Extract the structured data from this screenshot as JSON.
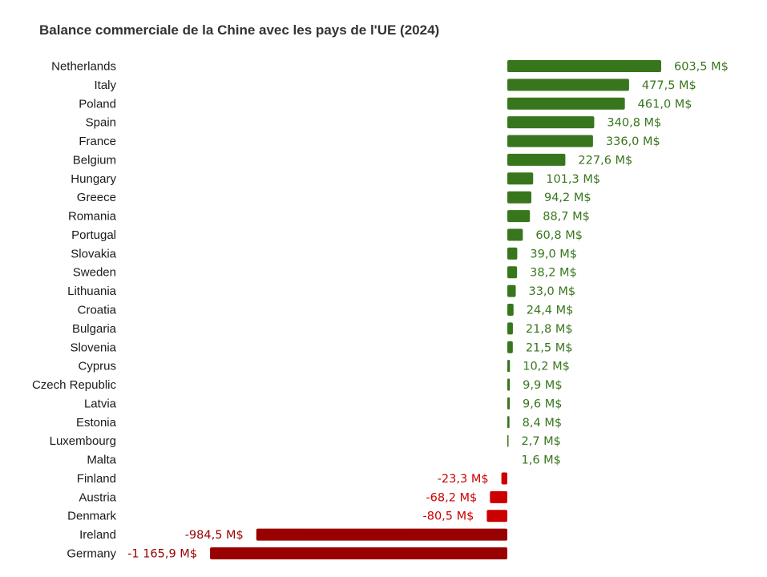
{
  "chart_data": {
    "type": "bar",
    "orientation": "horizontal",
    "title": "Balance commerciale de la Chine avec les pays de l'UE (2024)",
    "categories": [
      "Netherlands",
      "Italy",
      "Poland",
      "Spain",
      "France",
      "Belgium",
      "Hungary",
      "Greece",
      "Romania",
      "Portugal",
      "Slovakia",
      "Sweden",
      "Lithuania",
      "Croatia",
      "Bulgaria",
      "Slovenia",
      "Cyprus",
      "Czech Republic",
      "Latvia",
      "Estonia",
      "Luxembourg",
      "Malta",
      "Finland",
      "Austria",
      "Denmark",
      "Ireland",
      "Germany"
    ],
    "values": [
      603.5,
      477.5,
      461.0,
      340.8,
      336.0,
      227.6,
      101.3,
      94.2,
      88.7,
      60.8,
      39.0,
      38.2,
      33.0,
      24.4,
      21.8,
      21.5,
      10.2,
      9.9,
      9.6,
      8.4,
      2.7,
      1.6,
      -23.3,
      -68.2,
      -80.5,
      -984.5,
      -1165.9
    ],
    "value_labels": [
      "603,5 M$",
      "477,5 M$",
      "461,0 M$",
      "340,8 M$",
      "336,0 M$",
      "227,6 M$",
      "101,3 M$",
      "94,2 M$",
      "88,7 M$",
      "60,8 M$",
      "39,0 M$",
      "38,2 M$",
      "33,0 M$",
      "24,4 M$",
      "21,8 M$",
      "21,5 M$",
      "10,2 M$",
      "9,9 M$",
      "9,6 M$",
      "8,4 M$",
      "2,7 M$",
      "1,6 M$",
      "-23,3 M$",
      "-68,2 M$",
      "-80,5 M$",
      "-984,5 M$",
      "-1 165,9 M$"
    ],
    "xlabel": "",
    "ylabel": "",
    "grid": false,
    "legend": "none",
    "colors": {
      "positive": "#38761d",
      "negative_small": "#cc0000",
      "negative_large": "#990000",
      "positive_label": "#38761d",
      "negative_label": "#cc0000",
      "negative_large_label": "#990000"
    }
  }
}
